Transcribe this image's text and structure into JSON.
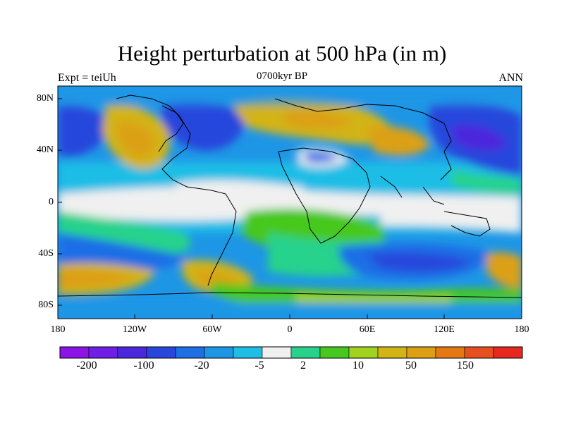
{
  "title": "Height perturbation at 500 hPa (in m)",
  "subtitle": "0700kyr BP",
  "left_label": "Expt = teiUh",
  "right_label": "ANN",
  "lat_ticks": [
    "80N",
    "40N",
    "0",
    "40S",
    "80S"
  ],
  "lon_ticks": [
    "180",
    "120W",
    "60W",
    "0",
    "60E",
    "120E",
    "180"
  ],
  "colorbar": {
    "colors": [
      "#8c14e6",
      "#6e1ee6",
      "#4b28dc",
      "#2846dc",
      "#1e6ee6",
      "#1e96e6",
      "#1ebee6",
      "#f0f0f0",
      "#28d28c",
      "#46c81e",
      "#a0d21e",
      "#d2b414",
      "#dca014",
      "#e67814",
      "#e6501e",
      "#e6281e"
    ],
    "labels": [
      "-200",
      "-100",
      "-20",
      "-5",
      "2",
      "10",
      "50",
      "150"
    ]
  }
}
